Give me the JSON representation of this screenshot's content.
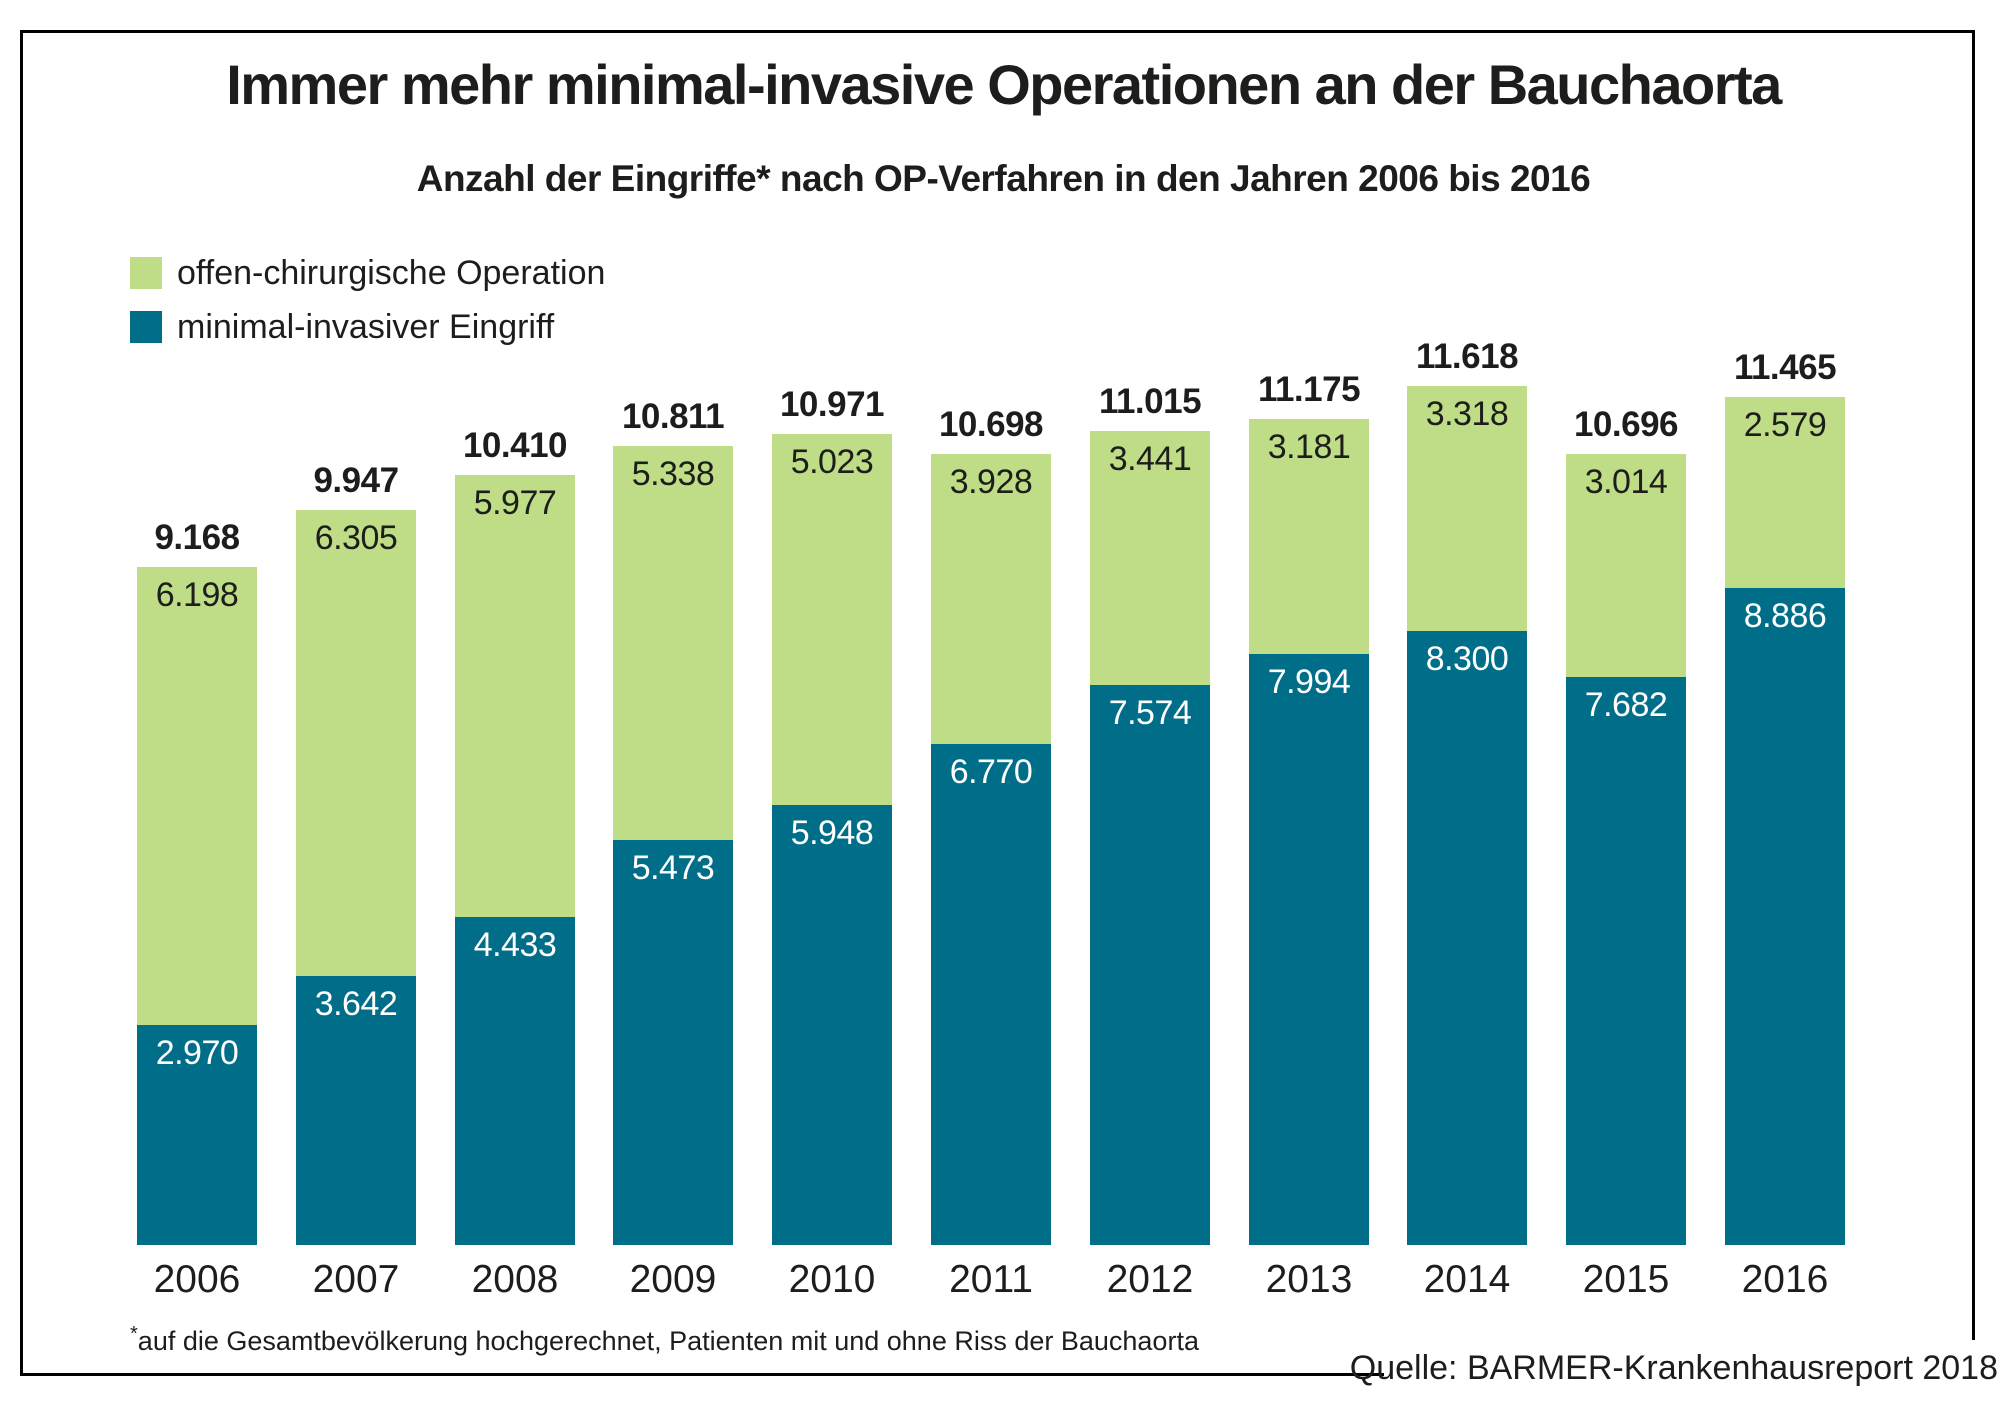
{
  "title": "Immer mehr minimal-invasive Operationen an der Bauchaorta",
  "subtitle": "Anzahl der Eingriffe* nach OP-Verfahren in den Jahren 2006 bis 2016",
  "legend": {
    "items": [
      {
        "label": "offen-chirurgische Operation",
        "color": "#bedd86"
      },
      {
        "label": "minimal-invasiver Eingriff",
        "color": "#016e89"
      }
    ]
  },
  "footnote": {
    "asterisk": "*",
    "text": "auf die Gesamtbevölkerung hochgerechnet, Patienten mit und ohne Riss der Bauchaorta"
  },
  "source": "Quelle: BARMER-Krankenhausreport 2018",
  "colors": {
    "open_surgery_green": "#bedd86",
    "minimal_invasive_teal": "#016e89",
    "text_dark": "#1d1d1b",
    "segment_label_on_teal": "#ffffff",
    "frame_border": "#000000"
  },
  "chart_data": {
    "type": "bar",
    "stacked": true,
    "title": "Immer mehr minimal-invasive Operationen an der Bauchaorta",
    "subtitle": "Anzahl der Eingriffe* nach OP-Verfahren in den Jahren 2006 bis 2016",
    "categories": [
      "2006",
      "2007",
      "2008",
      "2009",
      "2010",
      "2011",
      "2012",
      "2013",
      "2014",
      "2015",
      "2016"
    ],
    "series": [
      {
        "name": "minimal-invasiver Eingriff",
        "color": "#016e89",
        "label_color": "#ffffff",
        "values": [
          2970,
          3642,
          4433,
          5473,
          5948,
          6770,
          7574,
          7994,
          8300,
          7682,
          8886
        ],
        "labels": [
          "2.970",
          "3.642",
          "4.433",
          "5.473",
          "5.948",
          "6.770",
          "7.574",
          "7.994",
          "8.300",
          "7.682",
          "8.886"
        ]
      },
      {
        "name": "offen-chirurgische Operation",
        "color": "#bedd86",
        "label_color": "#1d1d1b",
        "values": [
          6198,
          6305,
          5977,
          5338,
          5023,
          3928,
          3441,
          3181,
          3318,
          3014,
          2579
        ],
        "labels": [
          "6.198",
          "6.305",
          "5.977",
          "5.338",
          "5.023",
          "3.928",
          "3.441",
          "3.181",
          "3.318",
          "3.014",
          "2.579"
        ]
      }
    ],
    "totals": [
      9168,
      9947,
      10410,
      10811,
      10971,
      10698,
      11015,
      11175,
      11618,
      10696,
      11465
    ],
    "totals_labels": [
      "9.168",
      "9.947",
      "10.410",
      "10.811",
      "10.971",
      "10.698",
      "11.015",
      "11.175",
      "11.618",
      "10.696",
      "11.465"
    ],
    "xlabel": "",
    "ylabel": "",
    "ylim": [
      0,
      12000
    ],
    "grid": false,
    "legend_position": "top-left",
    "value_format": "de-thousands-dot"
  }
}
